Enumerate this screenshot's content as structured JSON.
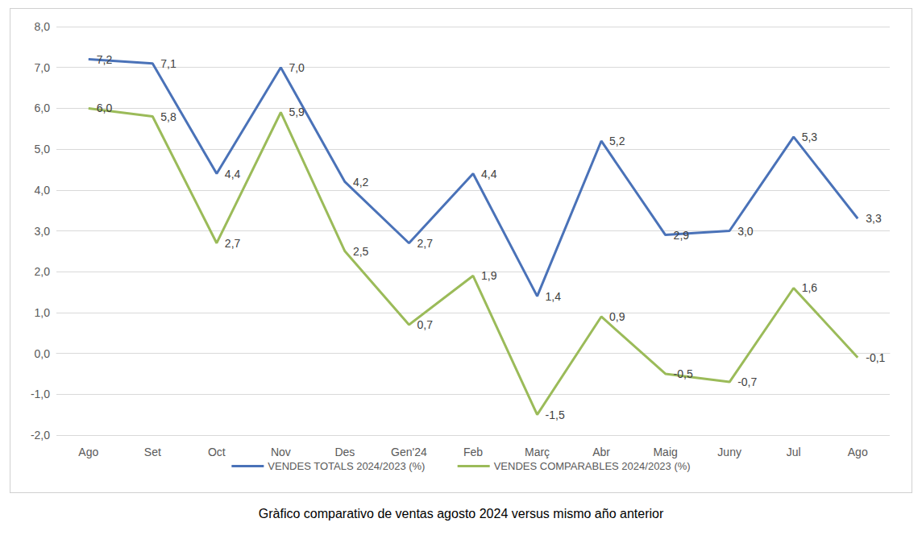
{
  "chart_data": {
    "type": "line",
    "title": "Gràfico comparativo de ventas agosto 2024 versus mismo año anterior",
    "categories": [
      "Ago",
      "Set",
      "Oct",
      "Nov",
      "Des",
      "Gen'24",
      "Feb",
      "Març",
      "Abr",
      "Maig",
      "Juny",
      "Jul",
      "Ago"
    ],
    "series": [
      {
        "name": "VENDES TOTALS 2024/2023 (%)",
        "color": "#4a72b8",
        "values": [
          7.2,
          7.1,
          4.4,
          7.0,
          4.2,
          2.7,
          4.4,
          1.4,
          5.2,
          2.9,
          3.0,
          5.3,
          3.3
        ],
        "value_labels": [
          "7,2",
          "7,1",
          "4,4",
          "7,0",
          "4,2",
          "2,7",
          "4,4",
          "1,4",
          "5,2",
          "2,9",
          "3,0",
          "5,3",
          "3,3"
        ]
      },
      {
        "name": "VENDES COMPARABLES 2024/2023 (%)",
        "color": "#9bbb59",
        "values": [
          6.0,
          5.8,
          2.7,
          5.9,
          2.5,
          0.7,
          1.9,
          -1.5,
          0.9,
          -0.5,
          -0.7,
          1.6,
          -0.1
        ],
        "value_labels": [
          "6,0",
          "5,8",
          "2,7",
          "5,9",
          "2,5",
          "0,7",
          "1,9",
          "-1,5",
          "0,9",
          "-0,5",
          "-0,7",
          "1,6",
          "-0,1"
        ]
      }
    ],
    "ylim": [
      -2,
      8
    ],
    "yticks": [
      {
        "value": -2,
        "label": "-2,0"
      },
      {
        "value": -1,
        "label": "-1,0"
      },
      {
        "value": 0,
        "label": "0,0"
      },
      {
        "value": 1,
        "label": "1,0"
      },
      {
        "value": 2,
        "label": "2,0"
      },
      {
        "value": 3,
        "label": "3,0"
      },
      {
        "value": 4,
        "label": "4,0"
      },
      {
        "value": 5,
        "label": "5,0"
      },
      {
        "value": 6,
        "label": "6,0"
      },
      {
        "value": 7,
        "label": "7,0"
      },
      {
        "value": 8,
        "label": "8,0"
      }
    ],
    "grid": true,
    "legend": "bottom",
    "data_labels": true,
    "marker": "none"
  }
}
